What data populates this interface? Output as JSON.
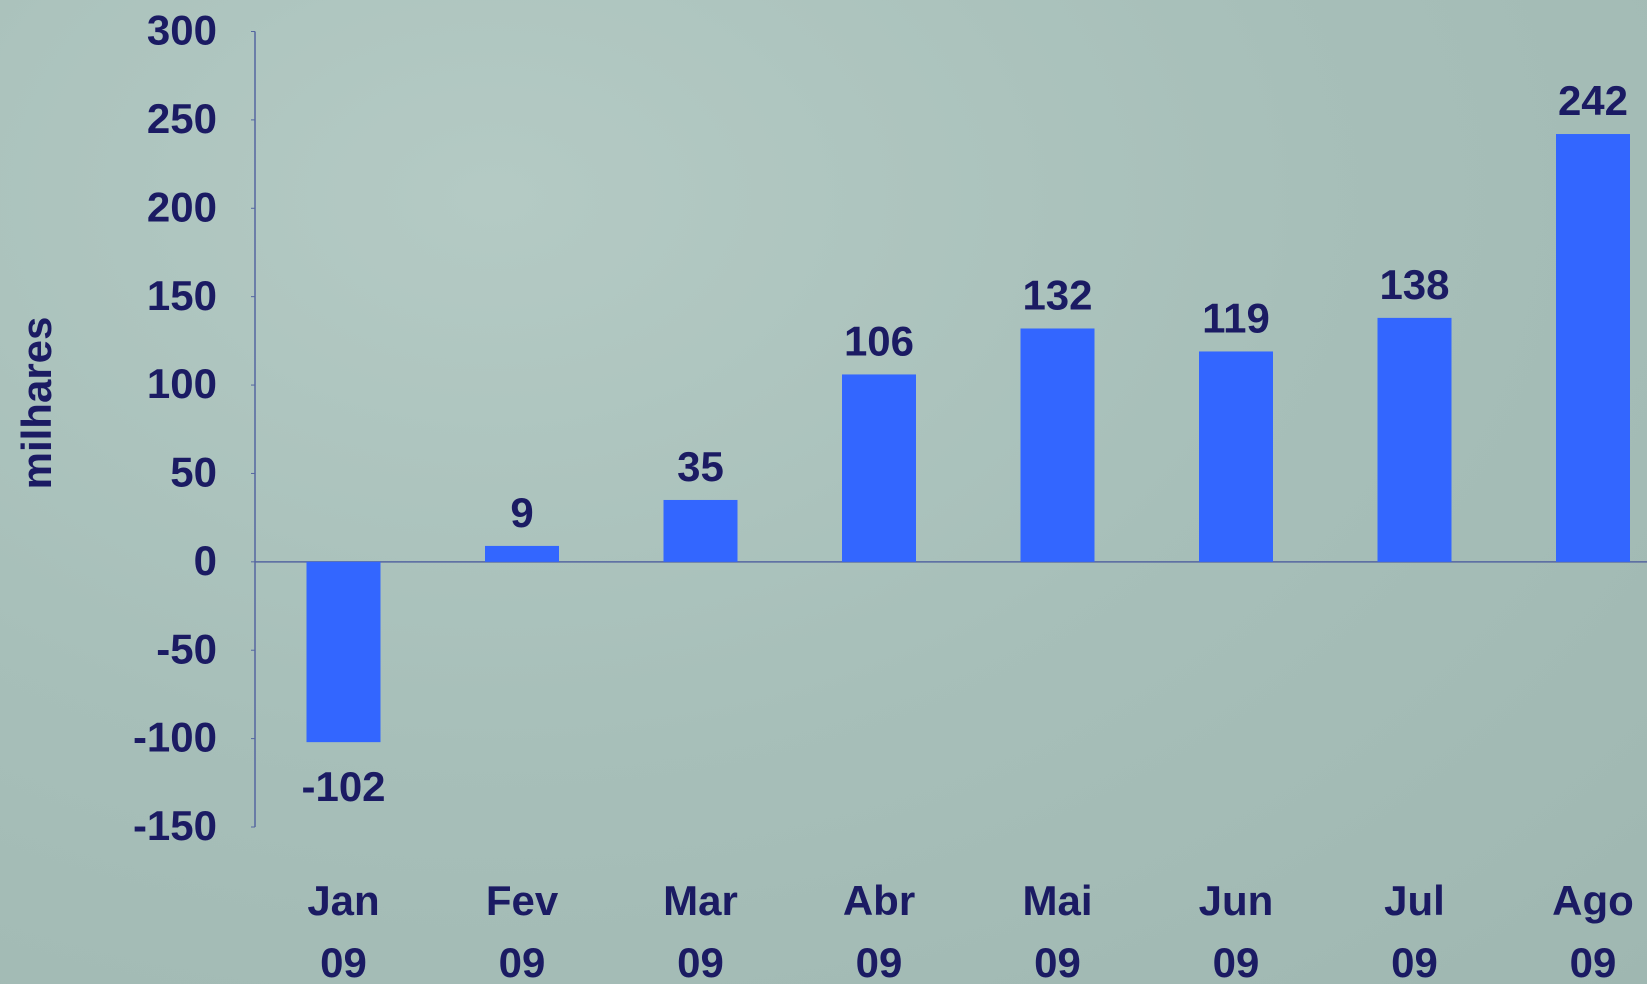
{
  "chart_data": {
    "type": "bar",
    "y_label": "milhares",
    "categories": [
      "Jan 09",
      "Fev 09",
      "Mar 09",
      "Abr 09",
      "Mai 09",
      "Jun 09",
      "Jul 09",
      "Ago 09"
    ],
    "values": [
      -102,
      9,
      35,
      106,
      132,
      119,
      138,
      242
    ],
    "color": "#3366ff",
    "ylim": [
      -150,
      300
    ],
    "yticks": [
      -150,
      -100,
      -50,
      0,
      50,
      100,
      150,
      200,
      250,
      300
    ]
  }
}
